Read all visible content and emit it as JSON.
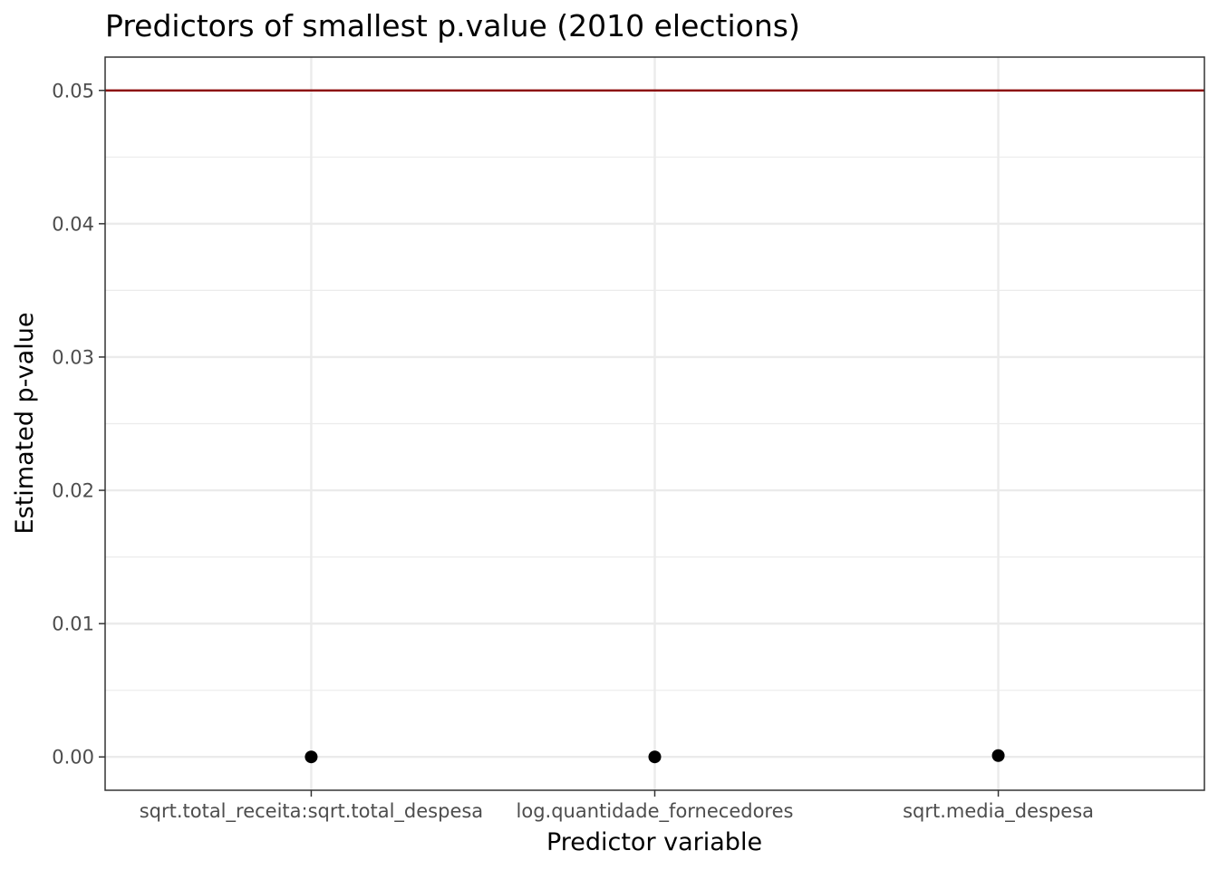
{
  "chart_data": {
    "type": "scatter",
    "title": "Predictors of smallest p.value (2010 elections)",
    "xlabel": "Predictor variable",
    "ylabel": "Estimated p-value",
    "categories": [
      "sqrt.total_receita:sqrt.total_despesa",
      "log.quantidade_fornecedores",
      "sqrt.media_despesa"
    ],
    "values": [
      0.0,
      0.0,
      0.0001
    ],
    "ylim": [
      -0.0025,
      0.0525
    ],
    "yticks": [
      0.0,
      0.01,
      0.02,
      0.03,
      0.04,
      0.05
    ],
    "ytick_labels": [
      "0.00",
      "0.01",
      "0.02",
      "0.03",
      "0.04",
      "0.05"
    ],
    "reference_line": {
      "y": 0.05,
      "color": "#8b0000"
    },
    "grid": true,
    "legend": "none",
    "colors": {
      "point": "#000000",
      "grid": "#ebebeb",
      "panel_border": "#333333",
      "tick_text": "#4d4d4d"
    }
  }
}
